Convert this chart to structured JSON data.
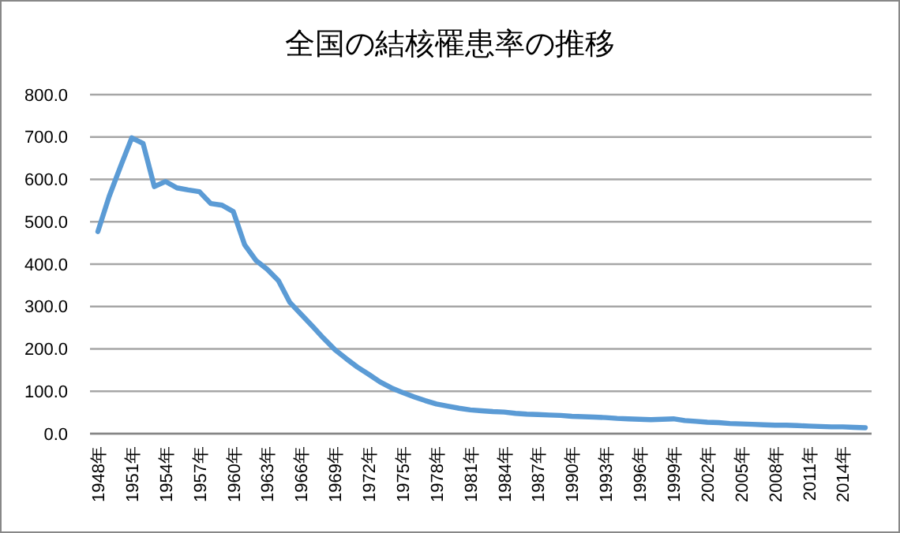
{
  "chart_data": {
    "type": "line",
    "title": "全国の結核罹患率の推移",
    "categories": [
      "1948年",
      null,
      null,
      "1951年",
      null,
      null,
      "1954年",
      null,
      null,
      "1957年",
      null,
      null,
      "1960年",
      null,
      null,
      "1963年",
      null,
      null,
      "1966年",
      null,
      null,
      "1969年",
      null,
      null,
      "1972年",
      null,
      null,
      "1975年",
      null,
      null,
      "1978年",
      null,
      null,
      "1981年",
      null,
      null,
      "1984年",
      null,
      null,
      "1987年",
      null,
      null,
      "1990年",
      null,
      null,
      "1993年",
      null,
      null,
      "1996年",
      null,
      null,
      "1999年",
      null,
      null,
      "2002年",
      null,
      null,
      "2005年",
      null,
      null,
      "2008年",
      null,
      null,
      "2011年",
      null,
      null,
      "2014年",
      null,
      null
    ],
    "series": [
      {
        "color": "#5b9bd5",
        "values": [
          477,
          560,
          630,
          698,
          685,
          583,
          595,
          580,
          575,
          571,
          543,
          539,
          524,
          446,
          409,
          388,
          361,
          310,
          282,
          254,
          225,
          198,
          177,
          157,
          140,
          122,
          108,
          97,
          87,
          78,
          70,
          65,
          60,
          56,
          54,
          52,
          51,
          48,
          46,
          45,
          44,
          43,
          41,
          40,
          39,
          38,
          36,
          35,
          34,
          33,
          34,
          35,
          31,
          29,
          27,
          26,
          24,
          23,
          22,
          21,
          20,
          20,
          19,
          18,
          17,
          16,
          16,
          15,
          14
        ]
      }
    ],
    "ylim": [
      0,
      800
    ],
    "yticks": [
      {
        "value": 0,
        "label": "0.0"
      },
      {
        "value": 100,
        "label": "100.0"
      },
      {
        "value": 200,
        "label": "200.0"
      },
      {
        "value": 300,
        "label": "300.0"
      },
      {
        "value": 400,
        "label": "400.0"
      },
      {
        "value": 500,
        "label": "500.0"
      },
      {
        "value": 600,
        "label": "600.0"
      },
      {
        "value": 700,
        "label": "700.0"
      },
      {
        "value": 800,
        "label": "800.0"
      }
    ],
    "grid": "y",
    "marker": "none",
    "line_style": "solid"
  }
}
